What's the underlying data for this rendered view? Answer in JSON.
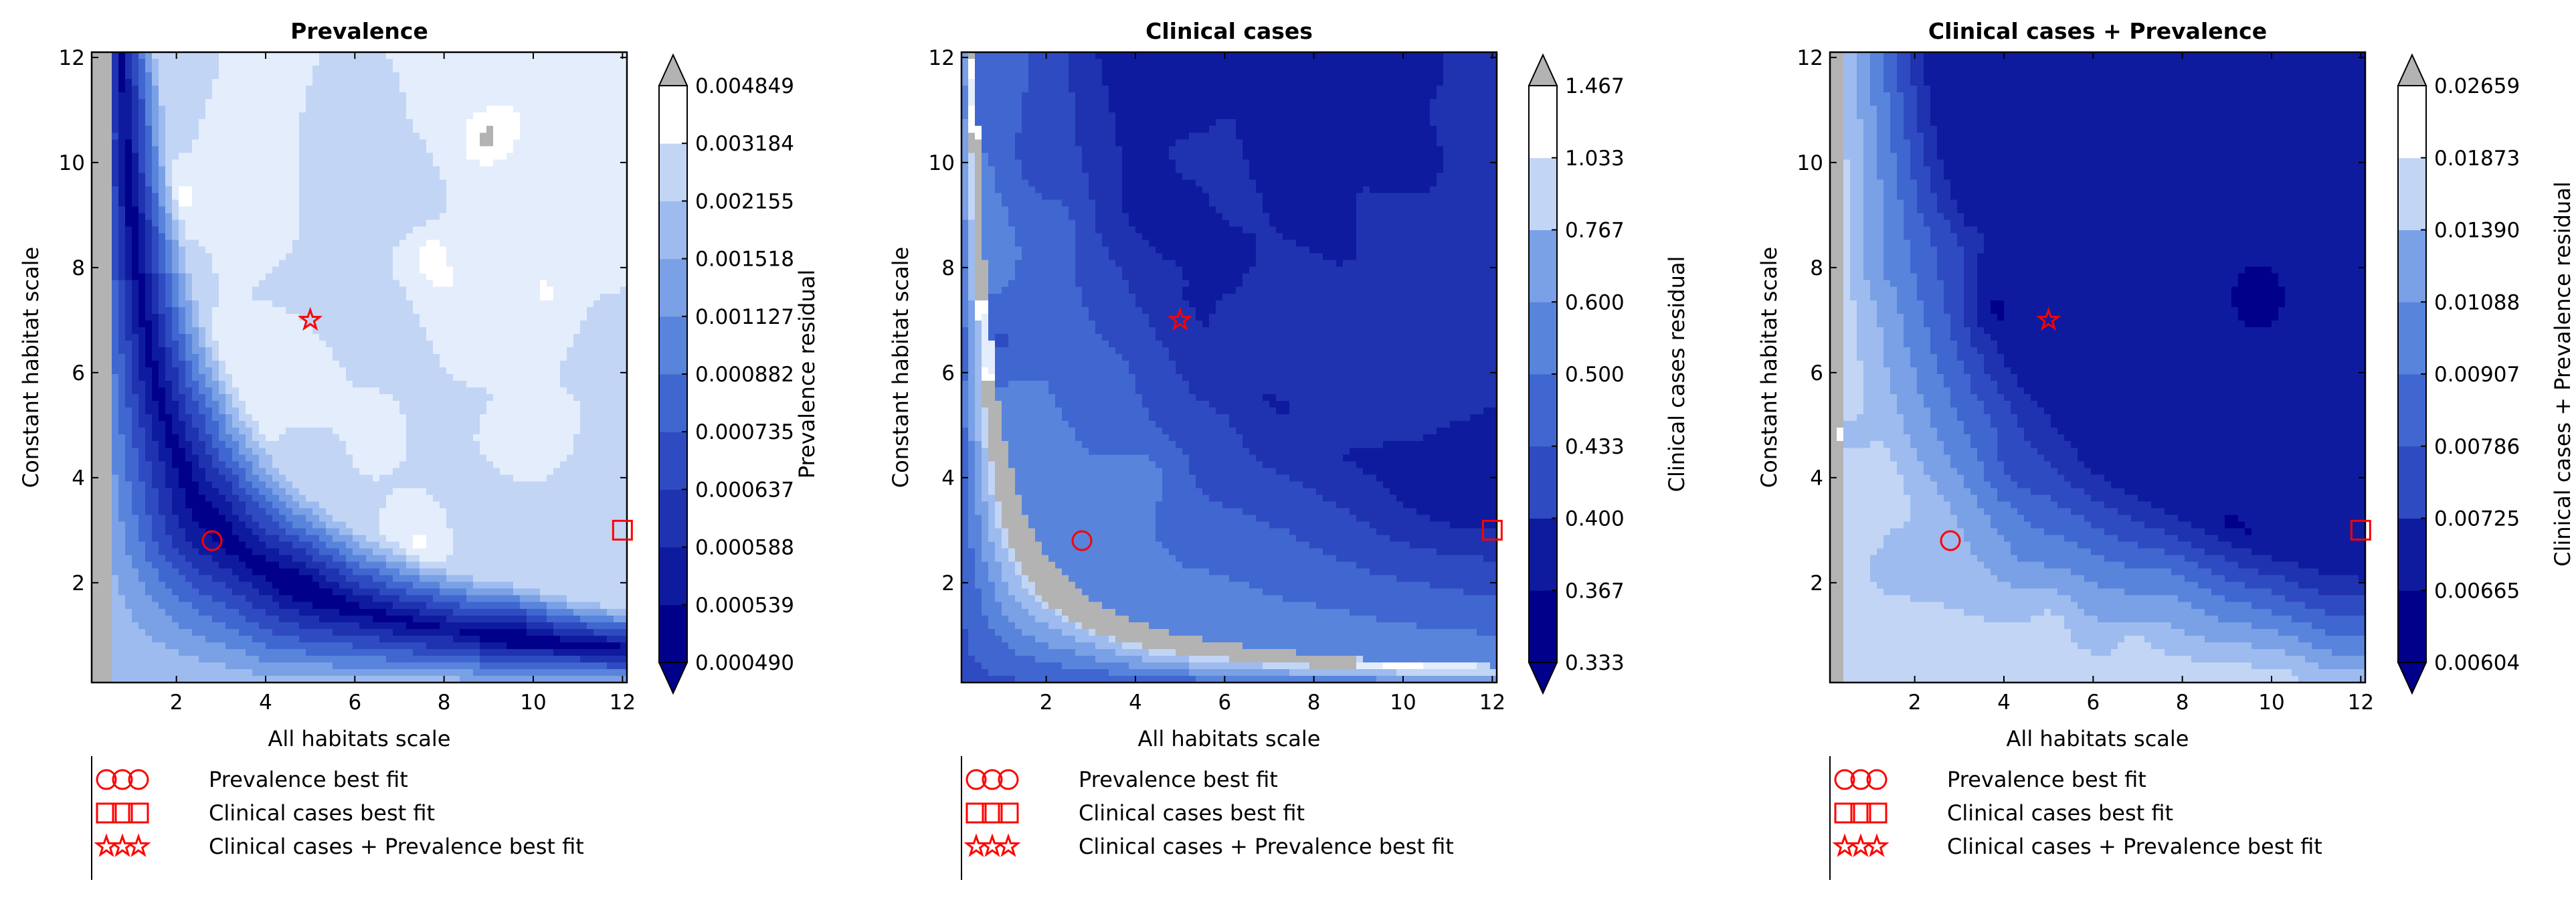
{
  "legend": {
    "entries": [
      {
        "label": "Prevalence best fit",
        "marker": "circle"
      },
      {
        "label": "Clinical cases best fit",
        "marker": "square"
      },
      {
        "label": "Clinical cases + Prevalence best fit",
        "marker": "star"
      }
    ]
  },
  "colors": {
    "levels": [
      "#00008b",
      "#0f1b9e",
      "#1f33b0",
      "#2f4bc1",
      "#4066d0",
      "#5984dc",
      "#7aa0e5",
      "#9dbbee",
      "#c2d5f5",
      "#e4edfb"
    ],
    "under": "#00008b",
    "over": "#b3b3b3",
    "marker": "#ff0000"
  },
  "chart_data": [
    {
      "type": "contour",
      "title": "Prevalence",
      "xlabel": "All habitats scale",
      "ylabel": "Constant habitat scale",
      "xlim": [
        0.1,
        12.1
      ],
      "ylim": [
        0.1,
        12.1
      ],
      "xticks": [
        "2",
        "4",
        "6",
        "8",
        "10",
        "12"
      ],
      "yticks": [
        "2",
        "4",
        "6",
        "8",
        "10",
        "12"
      ],
      "colorbar_label": "Prevalence residual",
      "colorbar_levels": [
        "0.000490",
        "0.000539",
        "0.000588",
        "0.000637",
        "0.000735",
        "0.000882",
        "0.001127",
        "0.001518",
        "0.002155",
        "0.003184",
        "0.004849"
      ],
      "markers": {
        "prevalence_best_fit": [
          2.8,
          2.8
        ],
        "clinical_cases_best_fit": [
          12,
          3
        ],
        "combined_best_fit": [
          5,
          7
        ]
      }
    },
    {
      "type": "contour",
      "title": "Clinical cases",
      "xlabel": "All habitats scale",
      "ylabel": "Constant habitat scale",
      "xlim": [
        0.1,
        12.1
      ],
      "ylim": [
        0.1,
        12.1
      ],
      "xticks": [
        "2",
        "4",
        "6",
        "8",
        "10",
        "12"
      ],
      "yticks": [
        "2",
        "4",
        "6",
        "8",
        "10",
        "12"
      ],
      "colorbar_label": "Clinical cases residual",
      "colorbar_levels": [
        "0.333",
        "0.367",
        "0.400",
        "0.433",
        "0.500",
        "0.600",
        "0.767",
        "1.033",
        "1.467"
      ],
      "markers": {
        "prevalence_best_fit": [
          2.8,
          2.8
        ],
        "clinical_cases_best_fit": [
          12,
          3
        ],
        "combined_best_fit": [
          5,
          7
        ]
      }
    },
    {
      "type": "contour",
      "title": "Clinical cases + Prevalence",
      "xlabel": "All habitats scale",
      "ylabel": "Constant habitat scale",
      "xlim": [
        0.1,
        12.1
      ],
      "ylim": [
        0.1,
        12.1
      ],
      "xticks": [
        "2",
        "4",
        "6",
        "8",
        "10",
        "12"
      ],
      "yticks": [
        "2",
        "4",
        "6",
        "8",
        "10",
        "12"
      ],
      "colorbar_label": "Clinical cases + Prevalence residual",
      "colorbar_levels": [
        "0.00604",
        "0.00665",
        "0.00725",
        "0.00786",
        "0.00907",
        "0.01088",
        "0.01390",
        "0.01873",
        "0.02659"
      ],
      "markers": {
        "prevalence_best_fit": [
          2.8,
          2.8
        ],
        "clinical_cases_best_fit": [
          12,
          3
        ],
        "combined_best_fit": [
          5,
          7
        ]
      }
    }
  ]
}
